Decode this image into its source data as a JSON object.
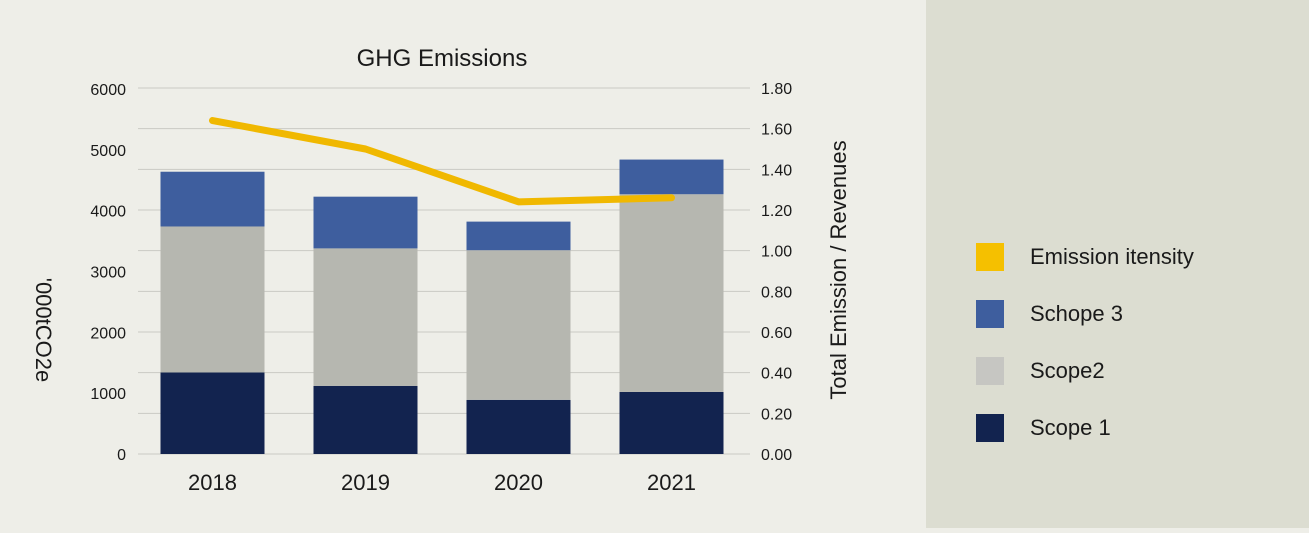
{
  "chart_data": {
    "type": "bar",
    "title": "GHG Emissions",
    "categories": [
      "2018",
      "2019",
      "2020",
      "2021"
    ],
    "ylabel": "'000tCO2e",
    "y2label": "Total Emission / Revenues",
    "ylim": [
      0,
      6000
    ],
    "y2lim": [
      0,
      1.8
    ],
    "yticks": [
      "0",
      "1000",
      "2000",
      "3000",
      "4000",
      "5000",
      "6000"
    ],
    "y2ticks": [
      "0.00",
      "0.20",
      "0.40",
      "0.60",
      "0.80",
      "1.00",
      "1.20",
      "1.40",
      "1.60",
      "1.80"
    ],
    "stacked": true,
    "series": [
      {
        "name": "Scope 1",
        "type": "bar",
        "axis": "left",
        "color": "#12234f",
        "values": [
          1340,
          1120,
          890,
          1020
        ]
      },
      {
        "name": "Scope2",
        "type": "bar",
        "axis": "left",
        "color": "#b6b7b0",
        "values": [
          2400,
          2260,
          2460,
          3250
        ]
      },
      {
        "name": "Schope 3",
        "type": "bar",
        "axis": "left",
        "color": "#3e5e9e",
        "values": [
          900,
          850,
          470,
          570
        ]
      },
      {
        "name": "Emission itensity",
        "type": "line",
        "axis": "right",
        "color": "#f0b800",
        "values": [
          1.64,
          1.5,
          1.24,
          1.26
        ]
      }
    ],
    "grid": true,
    "legend_position": "right"
  },
  "legend": {
    "items": [
      {
        "label": "Emission itensity",
        "color": "#f5c000"
      },
      {
        "label": "Schope 3",
        "color": "#3e5e9e"
      },
      {
        "label": "Scope2",
        "color": "#c6c6c2"
      },
      {
        "label": "Scope 1",
        "color": "#12234f"
      }
    ]
  }
}
